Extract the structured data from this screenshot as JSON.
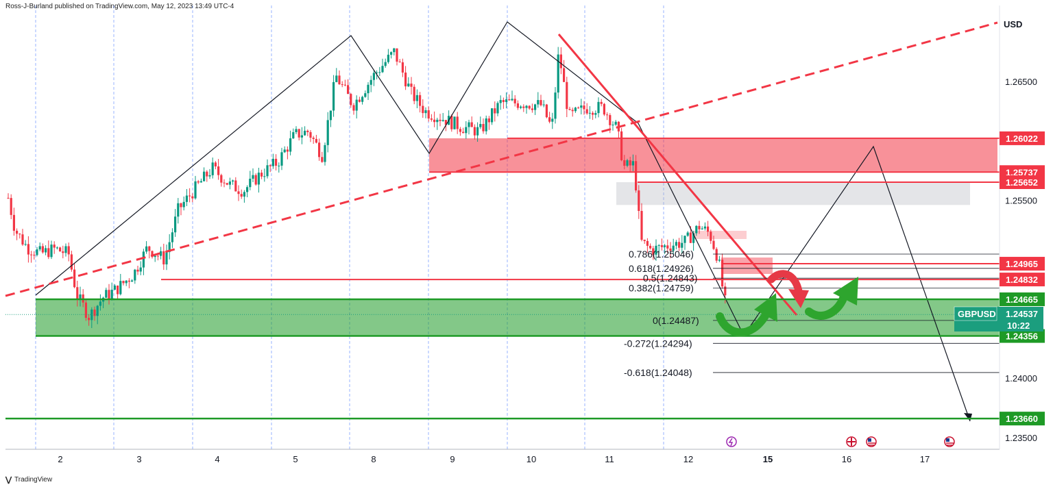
{
  "header": {
    "published": "Ross-J-Burland published on TradingView.com, May 12, 2023 13:49 UTC-4"
  },
  "footer": {
    "brand": "TradingView"
  },
  "chart_data": {
    "type": "candlestick",
    "symbol": "GBPUSD",
    "currency": "USD",
    "countdown": "10:22",
    "x_labels": [
      "2",
      "3",
      "4",
      "5",
      "8",
      "9",
      "10",
      "11",
      "12",
      "15",
      "16",
      "17"
    ],
    "y_ticks": [
      {
        "label": "1.26500",
        "value": 1.265
      },
      {
        "label": "1.25500",
        "value": 1.255
      },
      {
        "label": "1.24000",
        "value": 1.24
      },
      {
        "label": "1.23500",
        "value": 1.235
      }
    ],
    "ylim": [
      1.2343,
      1.2702
    ],
    "price_badges": [
      {
        "label": "1.26022",
        "value": 1.26022,
        "color": "#f23645"
      },
      {
        "label": "1.25737",
        "value": 1.25737,
        "color": "#f23645"
      },
      {
        "label": "1.25652",
        "value": 1.25652,
        "color": "#f23645"
      },
      {
        "label": "1.24965",
        "value": 1.24965,
        "color": "#f23645"
      },
      {
        "label": "1.24832",
        "value": 1.24832,
        "color": "#f23645"
      },
      {
        "label": "1.24665",
        "value": 1.24665,
        "color": "#1e9a26"
      },
      {
        "label": "1.24356",
        "value": 1.24356,
        "color": "#1e9a26"
      },
      {
        "label": "1.23660",
        "value": 1.2366,
        "color": "#1e9a26"
      }
    ],
    "last_price": {
      "symbol": "GBPUSD",
      "label": "1.24537",
      "value": 1.24537,
      "color": "#1b9e7e"
    },
    "fib_levels": [
      {
        "label": "0.786(1.25046)",
        "value": 1.25046
      },
      {
        "label": "0.618(1.24926)",
        "value": 1.24926
      },
      {
        "label": "0.5(1.24843)",
        "value": 1.24843
      },
      {
        "label": "0.382(1.24759)",
        "value": 1.24759
      },
      {
        "label": "0(1.24487)",
        "value": 1.24487
      },
      {
        "label": "-0.272(1.24294)",
        "value": 1.24294
      },
      {
        "label": "-0.618(1.24048)",
        "value": 1.24048
      }
    ],
    "zones": [
      {
        "name": "supply-zone",
        "from": 1.25737,
        "to": 1.26022,
        "color": "#f23645"
      },
      {
        "name": "grey-zone",
        "from": 1.2546,
        "to": 1.25652,
        "color": "#b2b5be"
      },
      {
        "name": "demand-zone",
        "from": 1.24356,
        "to": 1.24665,
        "color": "#1e9a26"
      }
    ],
    "colors": {
      "up": "#089981",
      "down": "#f23645",
      "trendline": "#f23645",
      "support": "#1e9a26"
    }
  }
}
